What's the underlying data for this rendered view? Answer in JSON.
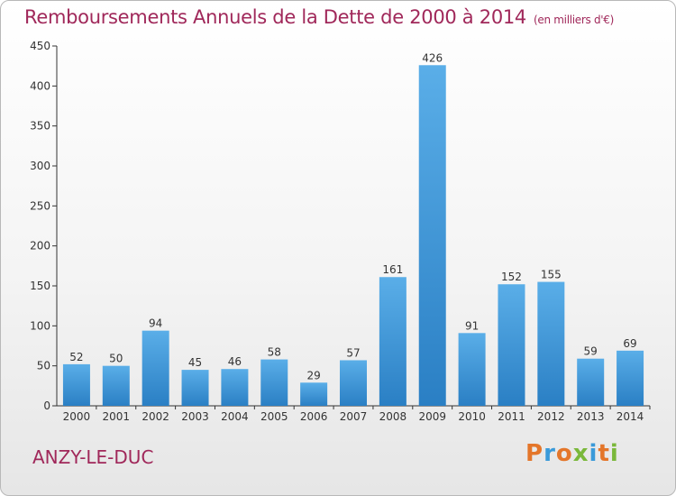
{
  "chart_data": {
    "type": "bar",
    "title": "Remboursements Annuels de la Dette de 2000 à 2014",
    "unit": "(en milliers d'€)",
    "categories": [
      "2000",
      "2001",
      "2002",
      "2003",
      "2004",
      "2005",
      "2006",
      "2007",
      "2008",
      "2009",
      "2010",
      "2011",
      "2012",
      "2013",
      "2014"
    ],
    "values": [
      52,
      50,
      94,
      45,
      46,
      58,
      29,
      57,
      161,
      426,
      91,
      152,
      155,
      59,
      69
    ],
    "ylim": [
      0,
      450
    ],
    "yticks": [
      0,
      50,
      100,
      150,
      200,
      250,
      300,
      350,
      400,
      450
    ],
    "grid": false,
    "colors": {
      "bar_top": "#5aaee8",
      "bar_bottom": "#2a7fc4",
      "title": "#a0285a"
    }
  },
  "footer": {
    "commune": "ANZY-LE-DUC",
    "brand_letters": [
      "P",
      "r",
      "o",
      "x",
      "i",
      "t",
      "i"
    ],
    "brand_colors": [
      "#e4762a",
      "#3a9ad9",
      "#e4762a",
      "#7ab83a",
      "#3a9ad9",
      "#e4762a",
      "#7ab83a"
    ]
  }
}
